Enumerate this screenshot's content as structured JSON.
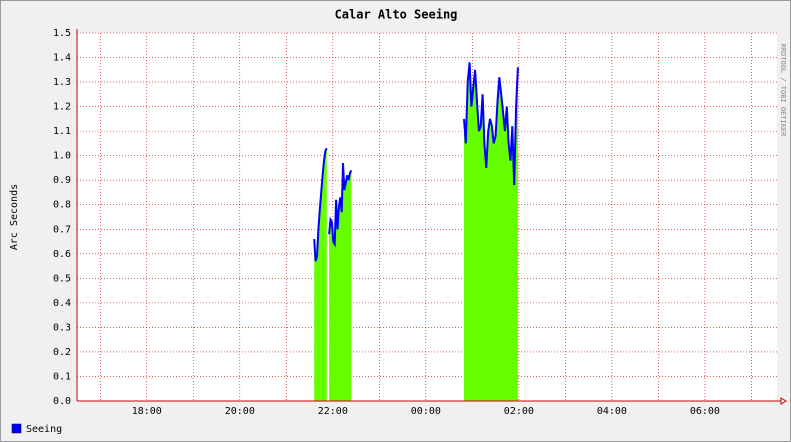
{
  "chart_data": {
    "type": "line",
    "title": "Calar Alto Seeing",
    "y_label": "Arc Seconds",
    "watermark": "RRDTOOL / TOBI OETIKER",
    "xlim": [
      16.5,
      31.55
    ],
    "xticks": [
      {
        "value": 18,
        "label": "18:00"
      },
      {
        "value": 20,
        "label": "20:00"
      },
      {
        "value": 22,
        "label": "22:00"
      },
      {
        "value": 24,
        "label": "00:00"
      },
      {
        "value": 26,
        "label": "02:00"
      },
      {
        "value": 28,
        "label": "04:00"
      },
      {
        "value": 30,
        "label": "06:00"
      }
    ],
    "xminor": [
      17,
      19,
      21,
      23,
      25,
      27,
      29,
      31
    ],
    "ylim": [
      0,
      1.5
    ],
    "yticks": [
      {
        "value": 0,
        "label": "0.0"
      },
      0.1,
      0.2,
      0.3,
      0.4,
      0.5,
      0.6,
      0.7,
      0.8,
      0.9,
      {
        "value": 1,
        "label": "1.0"
      },
      1.1,
      1.2,
      1.3,
      1.4,
      1.5
    ],
    "grid": true,
    "area_color": "#66ff00",
    "x": [
      21.6,
      21.63,
      21.66,
      21.69,
      21.72,
      21.75,
      21.78,
      21.81,
      21.84,
      21.87,
      21.89,
      21.92,
      21.95,
      21.98,
      22.01,
      22.04,
      22.07,
      22.1,
      22.13,
      22.16,
      22.19,
      22.22,
      22.25,
      22.28,
      22.31,
      22.34,
      22.37,
      22.4,
      24.5,
      24.82,
      24.86,
      24.9,
      24.94,
      24.98,
      25.02,
      25.06,
      25.1,
      25.14,
      25.18,
      25.22,
      25.26,
      25.3,
      25.34,
      25.38,
      25.42,
      25.46,
      25.5,
      25.54,
      25.58,
      25.62,
      25.66,
      25.7,
      25.74,
      25.78,
      25.82,
      25.86,
      25.9,
      25.94,
      25.98
    ],
    "series": [
      {
        "name": "Seeing",
        "color": "#0000ff",
        "values": [
          0.66,
          0.57,
          0.59,
          0.7,
          0.78,
          0.85,
          0.92,
          0.98,
          1.02,
          1.03,
          null,
          0.68,
          0.74,
          0.73,
          0.65,
          0.64,
          0.82,
          0.7,
          0.79,
          0.83,
          0.77,
          0.97,
          0.86,
          0.89,
          0.92,
          0.9,
          0.93,
          0.94,
          null,
          1.15,
          1.05,
          1.3,
          1.38,
          1.2,
          1.28,
          1.35,
          1.22,
          1.1,
          1.12,
          1.25,
          1.05,
          0.95,
          1.1,
          1.15,
          1.12,
          1.05,
          1.08,
          1.22,
          1.32,
          1.25,
          1.18,
          1.1,
          1.2,
          1.05,
          0.98,
          1.12,
          0.88,
          1.2,
          1.36
        ]
      }
    ]
  }
}
